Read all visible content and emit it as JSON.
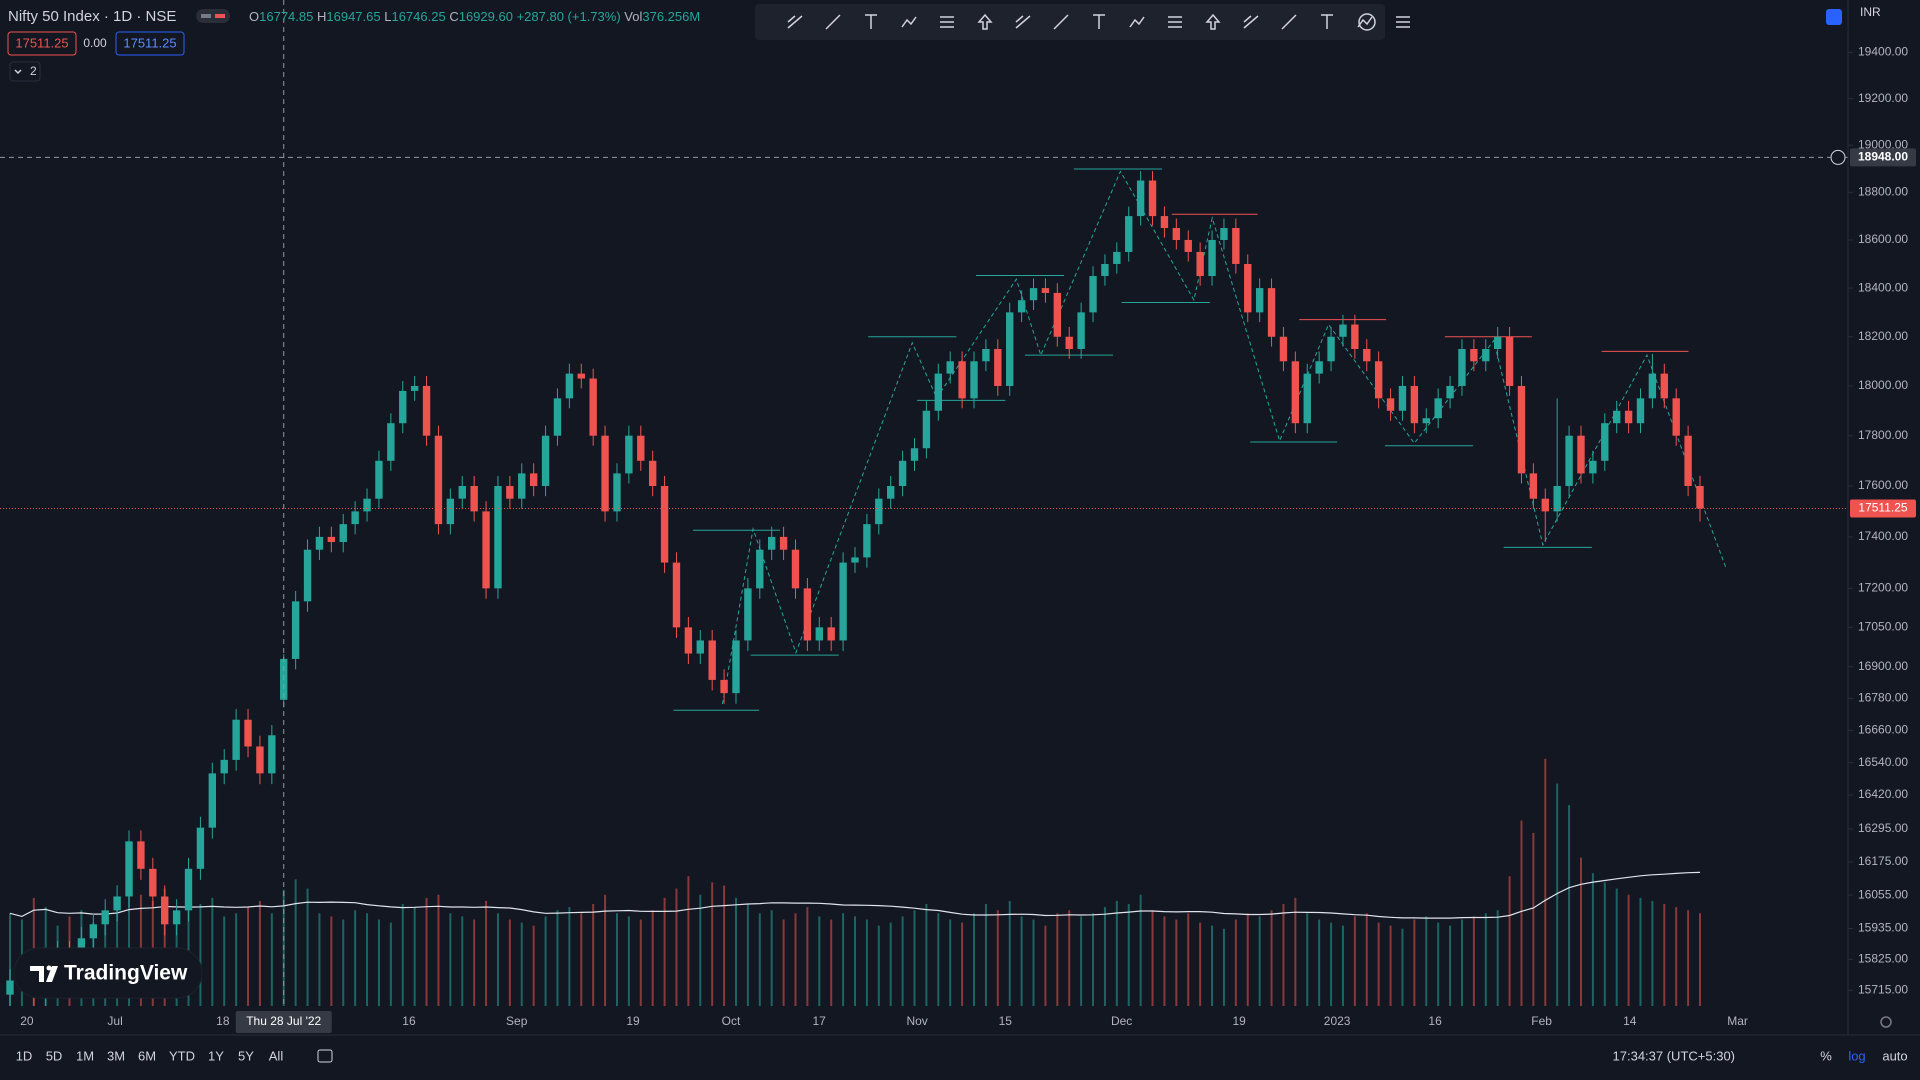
{
  "header": {
    "symbol": "Nifty 50 Index · 1D · NSE",
    "o_label": "O",
    "o": "16774.85",
    "h_label": "H",
    "h": "16947.65",
    "l_label": "L",
    "l": "16746.25",
    "c_label": "C",
    "c": "16929.60",
    "change": "+287.80 (+1.73%)",
    "vol_label": "Vol",
    "vol": "376.256M",
    "bid": "17511.25",
    "spread": "0.00",
    "ask": "17511.25",
    "indicators": "2"
  },
  "toolbar": {
    "intervals": [
      "1D",
      "5D",
      "1M",
      "3M",
      "6M",
      "YTD",
      "1Y",
      "5Y",
      "All"
    ],
    "clock": "17:34:37 (UTC+5:30)",
    "scale_buttons": [
      "%",
      "log",
      "auto"
    ],
    "currency": "INR"
  },
  "logo": "TradingView",
  "chart_data": {
    "type": "candlestick",
    "log_scale": true,
    "up_color": "#26a69a",
    "down_color": "#ef5350",
    "candles": {
      "open": [
        15700,
        15750,
        15800,
        15700,
        15780,
        15850,
        15800,
        15900,
        15950,
        16000,
        16050,
        16250,
        16150,
        16050,
        15950,
        16000,
        16150,
        16300,
        16500,
        16550,
        16700,
        16600,
        16500,
        16774.85,
        16929.6,
        17150,
        17350,
        17400,
        17380,
        17450,
        17500,
        17550,
        17700,
        17850,
        17980,
        18000,
        17800,
        17450,
        17550,
        17600,
        17500,
        17200,
        17600,
        17550,
        17650,
        17600,
        17800,
        17950,
        18050,
        18030,
        17800,
        17500,
        17650,
        17800,
        17700,
        17600,
        17300,
        17050,
        16950,
        17000,
        16850,
        16800,
        17000,
        17200,
        17350,
        17400,
        17350,
        17200,
        17000,
        17050,
        17000,
        17300,
        17320,
        17450,
        17550,
        17600,
        17700,
        17750,
        17900,
        18050,
        18100,
        17950,
        18100,
        18150,
        18000,
        18300,
        18350,
        18400,
        18380,
        18200,
        18150,
        18300,
        18450,
        18500,
        18550,
        18700,
        18850,
        18700,
        18650,
        18600,
        18550,
        18450,
        18600,
        18650,
        18500,
        18300,
        18400,
        18200,
        18100,
        17850,
        18050,
        18100,
        18200,
        18250,
        18150,
        18100,
        17950,
        17900,
        18000,
        17850,
        17870,
        17950,
        18000,
        18150,
        18100,
        18150,
        18200,
        18000,
        17650,
        17550,
        17500,
        17600,
        17800,
        17650,
        17700,
        17850,
        17900,
        17850,
        17950,
        18050,
        17950,
        17800,
        17600
      ],
      "high": [
        15790,
        15840,
        15840,
        15820,
        15890,
        15890,
        15940,
        15990,
        16040,
        16090,
        16290,
        16290,
        16190,
        16090,
        16040,
        16190,
        16340,
        16540,
        16590,
        16740,
        16740,
        16640,
        16680,
        16947.65,
        17190,
        17390,
        17440,
        17440,
        17490,
        17540,
        17590,
        17740,
        17890,
        18020,
        18040,
        18040,
        17840,
        17590,
        17640,
        17640,
        17540,
        17640,
        17640,
        17690,
        17690,
        17840,
        17990,
        18090,
        18090,
        18070,
        17840,
        17690,
        17840,
        17840,
        17740,
        17640,
        17340,
        17090,
        17040,
        17040,
        16890,
        17040,
        17240,
        17390,
        17440,
        17440,
        17390,
        17240,
        17090,
        17090,
        17340,
        17360,
        17490,
        17590,
        17640,
        17740,
        17790,
        17940,
        18090,
        18140,
        18140,
        18140,
        18190,
        18190,
        18340,
        18390,
        18440,
        18440,
        18420,
        18240,
        18340,
        18490,
        18540,
        18590,
        18740,
        18890,
        18890,
        18740,
        18690,
        18640,
        18590,
        18640,
        18690,
        18690,
        18540,
        18440,
        18440,
        18240,
        18140,
        18090,
        18140,
        18240,
        18290,
        18290,
        18190,
        18140,
        17990,
        18040,
        18040,
        17910,
        17990,
        18040,
        18190,
        18190,
        18190,
        18240,
        18240,
        18040,
        17690,
        17590,
        17950,
        17840,
        17840,
        17740,
        17890,
        17940,
        17940,
        17990,
        18130,
        18090,
        17990,
        17840,
        17640
      ],
      "low": [
        15660,
        15710,
        15660,
        15660,
        15740,
        15760,
        15760,
        15860,
        15910,
        15960,
        16010,
        16110,
        16010,
        15910,
        15910,
        15960,
        16110,
        16260,
        16460,
        16510,
        16560,
        16460,
        16460,
        16746.25,
        16890,
        17110,
        17310,
        17340,
        17340,
        17410,
        17460,
        17510,
        17660,
        17810,
        17940,
        17760,
        17410,
        17410,
        17510,
        17460,
        17160,
        17160,
        17510,
        17510,
        17560,
        17560,
        17760,
        17910,
        17990,
        17760,
        17460,
        17460,
        17610,
        17660,
        17560,
        17260,
        17010,
        16910,
        16910,
        16810,
        16760,
        16760,
        16960,
        17160,
        17310,
        17310,
        17160,
        16960,
        16960,
        16960,
        16960,
        17260,
        17280,
        17410,
        17510,
        17560,
        17660,
        17710,
        17860,
        18010,
        17910,
        17910,
        18060,
        17960,
        17960,
        18260,
        18310,
        18340,
        18160,
        18110,
        18110,
        18260,
        18410,
        18460,
        18510,
        18660,
        18660,
        18610,
        18560,
        18510,
        18410,
        18410,
        18560,
        18460,
        18260,
        18260,
        18160,
        18060,
        17810,
        17810,
        18010,
        18060,
        18160,
        18110,
        18060,
        17910,
        17860,
        17860,
        17810,
        17810,
        17830,
        17910,
        17960,
        18060,
        18060,
        18110,
        17960,
        17610,
        17510,
        17380,
        17460,
        17560,
        17610,
        17610,
        17660,
        17810,
        17810,
        17810,
        17910,
        17910,
        17760,
        17560,
        17460
      ],
      "close": [
        15750,
        15800,
        15700,
        15780,
        15850,
        15800,
        15900,
        15950,
        16000,
        16050,
        16250,
        16150,
        16050,
        15950,
        16000,
        16150,
        16300,
        16500,
        16550,
        16700,
        16600,
        16500,
        16641.8,
        16929.6,
        17150,
        17350,
        17400,
        17380,
        17450,
        17500,
        17550,
        17700,
        17850,
        17980,
        18000,
        17800,
        17450,
        17550,
        17600,
        17500,
        17200,
        17600,
        17550,
        17650,
        17600,
        17800,
        17950,
        18050,
        18030,
        17800,
        17500,
        17650,
        17800,
        17700,
        17600,
        17300,
        17050,
        16950,
        17000,
        16850,
        16800,
        17000,
        17200,
        17350,
        17400,
        17350,
        17200,
        17000,
        17050,
        17000,
        17300,
        17320,
        17450,
        17550,
        17600,
        17700,
        17750,
        17900,
        18050,
        18100,
        17950,
        18100,
        18150,
        18000,
        18300,
        18350,
        18400,
        18380,
        18200,
        18150,
        18300,
        18450,
        18500,
        18550,
        18700,
        18850,
        18700,
        18650,
        18600,
        18550,
        18450,
        18600,
        18650,
        18500,
        18300,
        18400,
        18200,
        18100,
        17850,
        18050,
        18100,
        18200,
        18250,
        18150,
        18100,
        17950,
        17900,
        18000,
        17850,
        17870,
        17950,
        18000,
        18150,
        18100,
        18150,
        18200,
        18000,
        17650,
        17550,
        17500,
        17600,
        17800,
        17650,
        17700,
        17850,
        17900,
        17850,
        17950,
        18050,
        17950,
        17800,
        17600,
        17511.25
      ]
    },
    "volume": [
      300,
      280,
      350,
      320,
      260,
      290,
      310,
      270,
      300,
      330,
      420,
      360,
      340,
      380,
      300,
      310,
      330,
      350,
      290,
      300,
      320,
      340,
      300,
      376.256,
      410,
      380,
      300,
      290,
      280,
      310,
      300,
      280,
      270,
      330,
      320,
      350,
      360,
      300,
      290,
      280,
      340,
      300,
      280,
      270,
      260,
      290,
      310,
      320,
      300,
      330,
      360,
      300,
      290,
      280,
      310,
      350,
      380,
      420,
      360,
      400,
      390,
      350,
      330,
      300,
      310,
      280,
      300,
      320,
      290,
      280,
      300,
      290,
      280,
      260,
      270,
      290,
      310,
      330,
      300,
      280,
      270,
      300,
      330,
      310,
      340,
      290,
      280,
      260,
      300,
      310,
      290,
      300,
      320,
      340,
      330,
      360,
      310,
      290,
      280,
      300,
      270,
      260,
      250,
      280,
      300,
      290,
      310,
      330,
      350,
      300,
      280,
      270,
      260,
      290,
      300,
      270,
      260,
      250,
      280,
      290,
      270,
      260,
      280,
      290,
      300,
      310,
      420,
      600,
      560,
      800,
      720,
      650,
      480,
      430,
      400,
      380,
      360,
      350,
      340,
      330,
      320,
      310,
      300
    ],
    "ylim": [
      15660,
      19630
    ],
    "yticks": [
      {
        "value": 19400,
        "label": "19400.00"
      },
      {
        "value": 19200,
        "label": "19200.00"
      },
      {
        "value": 19000,
        "label": "19000.00"
      },
      {
        "value": 18800,
        "label": "18800.00"
      },
      {
        "value": 18600,
        "label": "18600.00"
      },
      {
        "value": 18400,
        "label": "18400.00"
      },
      {
        "value": 18200,
        "label": "18200.00"
      },
      {
        "value": 18000,
        "label": "18000.00"
      },
      {
        "value": 17800,
        "label": "17800.00"
      },
      {
        "value": 17600,
        "label": "17600.00"
      },
      {
        "value": 17400,
        "label": "17400.00"
      },
      {
        "value": 17200,
        "label": "17200.00"
      },
      {
        "value": 17050,
        "label": "17050.00"
      },
      {
        "value": 16900,
        "label": "16900.00"
      },
      {
        "value": 16780,
        "label": "16780.00"
      },
      {
        "value": 16660,
        "label": "16660.00"
      },
      {
        "value": 16540,
        "label": "16540.00"
      },
      {
        "value": 16420,
        "label": "16420.00"
      },
      {
        "value": 16295,
        "label": "16295.00"
      },
      {
        "value": 16175,
        "label": "16175.00"
      },
      {
        "value": 16055,
        "label": "16055.00"
      },
      {
        "value": 15935,
        "label": "15935.00"
      },
      {
        "value": 15825,
        "label": "15825.00"
      },
      {
        "value": 15715,
        "label": "15715.00"
      }
    ],
    "x_labels": [
      "20",
      "Jul",
      "18",
      "16",
      "Sep",
      "19",
      "Oct",
      "17",
      "Nov",
      "15",
      "Dec",
      "19",
      "2023",
      "16",
      "Feb",
      "14",
      "Mar"
    ],
    "crosshair": {
      "x_label": "Thu 28 Jul '22",
      "price": {
        "value": 18948,
        "label": "18948.00"
      }
    },
    "last_price": {
      "value": 17511.25,
      "label": "17511.25"
    }
  }
}
